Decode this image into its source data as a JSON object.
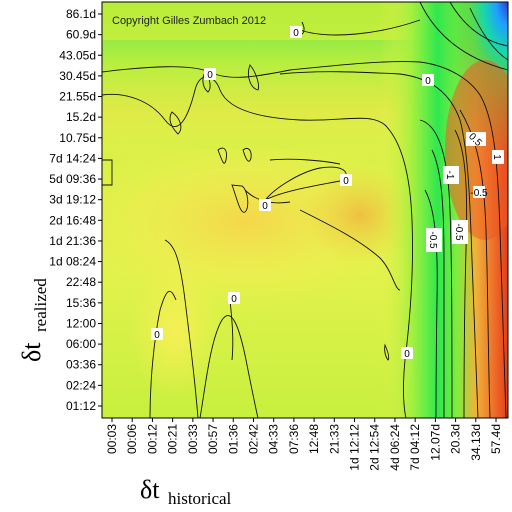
{
  "chart_data": {
    "type": "heatmap",
    "copyright": "Copyright Gilles Zumbach 2012",
    "xlabel": {
      "main": "δt",
      "sub": "historical"
    },
    "ylabel": {
      "main": "δt",
      "sub": "realized"
    },
    "x_ticks": [
      "00:03",
      "00:06",
      "00:12",
      "00:21",
      "00:33",
      "00:57",
      "01:36",
      "02:42",
      "04:33",
      "07:36",
      "12:48",
      "21:33",
      "1d 12:12",
      "2d 12:54",
      "4d 06:24",
      "7d 04:12",
      "12.07d",
      "20.3d",
      "34.13d",
      "57.4d"
    ],
    "y_ticks": [
      "01:12",
      "02:24",
      "03:36",
      "06:00",
      "12:00",
      "15:36",
      "22:48",
      "1d 08:24",
      "1d 21:36",
      "2d 16:48",
      "3d 19:12",
      "5d 09:36",
      "7d 14:24",
      "10.75d",
      "15.2d",
      "21.55d",
      "30.45d",
      "43.05d",
      "60.9d",
      "86.1d"
    ],
    "contour_levels": [
      -1,
      -0.5,
      0,
      0.5,
      1
    ],
    "contour_labels": [
      "0",
      "0",
      "0",
      "0",
      "0",
      "0",
      "0",
      "0",
      "-1",
      "-0.5",
      "-0.5",
      "-0.5",
      "0.5",
      "1"
    ],
    "colormap": [
      "#2b3fd0",
      "#1ea0ff",
      "#18d8a8",
      "#2ee84e",
      "#8af53c",
      "#dff54a",
      "#f4ee52",
      "#f7d240",
      "#f59a34",
      "#ee5a24",
      "#e0341a"
    ],
    "grid": false,
    "legend": "none"
  }
}
